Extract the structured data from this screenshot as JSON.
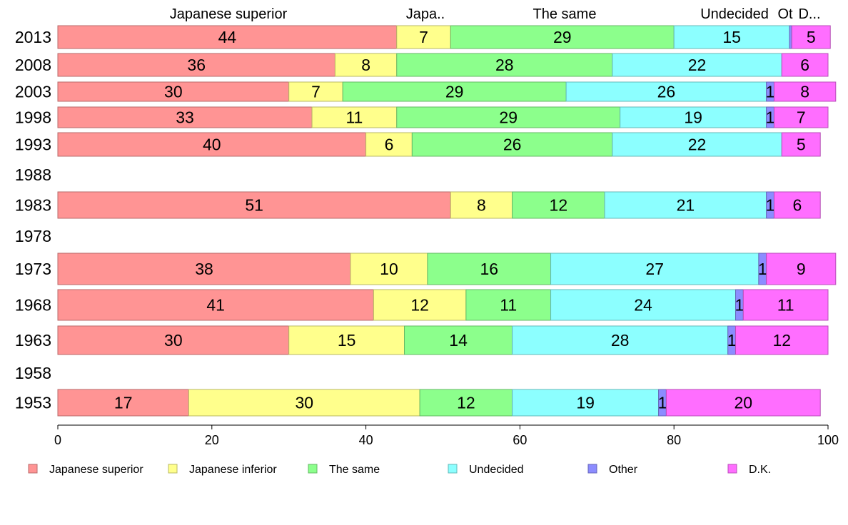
{
  "chart_data": {
    "type": "bar",
    "orientation": "horizontal",
    "stacked": true,
    "xlim": [
      0,
      100
    ],
    "xticks": [
      0,
      20,
      40,
      60,
      80,
      100
    ],
    "grid": false,
    "legend_position": "bottom",
    "top_labels": [
      "Japanese superior",
      "Japa..",
      "The same",
      "Undecided",
      "Ot",
      "D..."
    ],
    "series": [
      {
        "name": "Japanese superior",
        "color": "#ff9494",
        "stroke": "#b86a6a"
      },
      {
        "name": "Japanese inferior",
        "color": "#ffff8c",
        "stroke": "#b8b864"
      },
      {
        "name": "The same",
        "color": "#8cff8c",
        "stroke": "#64b864"
      },
      {
        "name": "Undecided",
        "color": "#8cffff",
        "stroke": "#64b8b8"
      },
      {
        "name": "Other",
        "color": "#8c8cff",
        "stroke": "#6464b8"
      },
      {
        "name": "D.K.",
        "color": "#ff6eff",
        "stroke": "#b84eb8"
      }
    ],
    "rows": [
      {
        "year": "2013",
        "values": [
          44,
          7,
          29,
          15,
          0.3,
          5
        ],
        "labels": [
          "44",
          "7",
          "29",
          "15",
          "",
          "5"
        ]
      },
      {
        "year": "2008",
        "values": [
          36,
          8,
          28,
          22,
          0,
          6
        ],
        "labels": [
          "36",
          "8",
          "28",
          "22",
          "",
          "6"
        ]
      },
      {
        "year": "2003",
        "values": [
          30,
          7,
          29,
          26,
          1,
          8
        ],
        "labels": [
          "30",
          "7",
          "29",
          "26",
          "1",
          "8"
        ]
      },
      {
        "year": "1998",
        "values": [
          33,
          11,
          29,
          19,
          1,
          7
        ],
        "labels": [
          "33",
          "11",
          "29",
          "19",
          "1",
          "7"
        ]
      },
      {
        "year": "1993",
        "values": [
          40,
          6,
          26,
          22,
          0,
          5
        ],
        "labels": [
          "40",
          "6",
          "26",
          "22",
          "",
          "5"
        ]
      },
      {
        "year": "1988",
        "values": [],
        "labels": []
      },
      {
        "year": "1983",
        "values": [
          51,
          8,
          12,
          21,
          1,
          6
        ],
        "labels": [
          "51",
          "8",
          "12",
          "21",
          "1",
          "6"
        ]
      },
      {
        "year": "1978",
        "values": [],
        "labels": []
      },
      {
        "year": "1973",
        "values": [
          38,
          10,
          16,
          27,
          1,
          9
        ],
        "labels": [
          "38",
          "10",
          "16",
          "27",
          "1",
          "9"
        ]
      },
      {
        "year": "1968",
        "values": [
          41,
          12,
          11,
          24,
          1,
          11
        ],
        "labels": [
          "41",
          "12",
          "11",
          "24",
          "1",
          "11"
        ]
      },
      {
        "year": "1963",
        "values": [
          30,
          15,
          14,
          28,
          1,
          12
        ],
        "labels": [
          "30",
          "15",
          "14",
          "28",
          "1",
          "12"
        ]
      },
      {
        "year": "1958",
        "values": [],
        "labels": []
      },
      {
        "year": "1953",
        "values": [
          17,
          30,
          12,
          19,
          1,
          20
        ],
        "labels": [
          "17",
          "30",
          "12",
          "19",
          "1",
          "20"
        ]
      }
    ]
  }
}
